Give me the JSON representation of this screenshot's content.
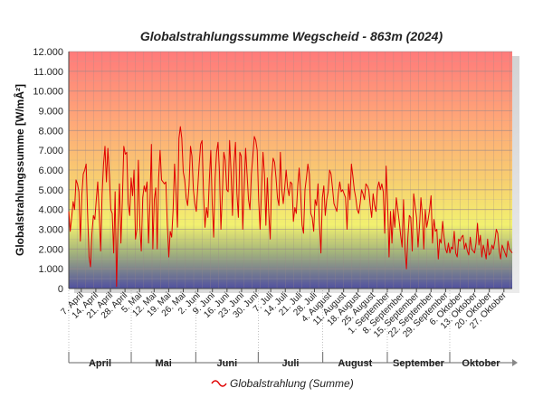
{
  "chart_data": {
    "type": "line",
    "title": "Globalstrahlungssumme Wegscheid - 863m (2024)",
    "ylabel": "Globalstrahlungssumme [W/mÂ²]",
    "ylim": [
      0,
      12000
    ],
    "yticks": [
      "0",
      "1.000",
      "2.000",
      "3.000",
      "4.000",
      "5.000",
      "6.000",
      "7.000",
      "8.000",
      "9.000",
      "10.000",
      "11.000",
      "12.000"
    ],
    "xlim": [
      "2024-04-01",
      "2024-10-31"
    ],
    "xticks": [
      {
        "date": "2024-04-07",
        "label": "7. April"
      },
      {
        "date": "2024-04-14",
        "label": "14. April"
      },
      {
        "date": "2024-04-21",
        "label": "21. April"
      },
      {
        "date": "2024-04-28",
        "label": "28. April"
      },
      {
        "date": "2024-05-05",
        "label": "5. Mai"
      },
      {
        "date": "2024-05-12",
        "label": "12. Mai"
      },
      {
        "date": "2024-05-19",
        "label": "19. Mai"
      },
      {
        "date": "2024-05-26",
        "label": "26. Mai"
      },
      {
        "date": "2024-06-02",
        "label": "2. Juni"
      },
      {
        "date": "2024-06-09",
        "label": "9. Juni"
      },
      {
        "date": "2024-06-16",
        "label": "16. Juni"
      },
      {
        "date": "2024-06-23",
        "label": "23. Juni"
      },
      {
        "date": "2024-06-30",
        "label": "30. Juni"
      },
      {
        "date": "2024-07-07",
        "label": "7. Juli"
      },
      {
        "date": "2024-07-14",
        "label": "14. Juli"
      },
      {
        "date": "2024-07-21",
        "label": "21. Juli"
      },
      {
        "date": "2024-07-28",
        "label": "28. Juli"
      },
      {
        "date": "2024-08-04",
        "label": "4. August"
      },
      {
        "date": "2024-08-11",
        "label": "11. August"
      },
      {
        "date": "2024-08-18",
        "label": "18. August"
      },
      {
        "date": "2024-08-25",
        "label": "25. August"
      },
      {
        "date": "2024-09-01",
        "label": "1. September"
      },
      {
        "date": "2024-09-08",
        "label": "8. September"
      },
      {
        "date": "2024-09-15",
        "label": "15. September"
      },
      {
        "date": "2024-09-22",
        "label": "22. September"
      },
      {
        "date": "2024-09-29",
        "label": "29. September"
      },
      {
        "date": "2024-10-06",
        "label": "6. Oktober"
      },
      {
        "date": "2024-10-13",
        "label": "13. Oktober"
      },
      {
        "date": "2024-10-20",
        "label": "20. Oktober"
      },
      {
        "date": "2024-10-27",
        "label": "27. Oktober"
      }
    ],
    "months": [
      {
        "label": "April",
        "start": "2024-04-01",
        "end": "2024-05-01"
      },
      {
        "label": "Mai",
        "start": "2024-05-01",
        "end": "2024-06-01"
      },
      {
        "label": "Juni",
        "start": "2024-06-01",
        "end": "2024-07-01"
      },
      {
        "label": "Juli",
        "start": "2024-07-01",
        "end": "2024-08-01"
      },
      {
        "label": "August",
        "start": "2024-08-01",
        "end": "2024-09-01"
      },
      {
        "label": "September",
        "start": "2024-09-01",
        "end": "2024-10-01"
      },
      {
        "label": "Oktober",
        "start": "2024-10-01",
        "end": "2024-11-01"
      }
    ],
    "grid": true,
    "legend_position": "bottom-center",
    "colors": {
      "line": "#e00000",
      "bg_top": "#ff7a7a",
      "bg_mid": "#f5f070",
      "bg_bottom": "#5a5aa0"
    },
    "series": [
      {
        "name": "Globalstrahlung (Summe)",
        "start_date": "2024-04-01",
        "values": [
          3900,
          2900,
          3600,
          4400,
          4000,
          5500,
          5300,
          4900,
          2400,
          4700,
          5800,
          6000,
          6300,
          3800,
          1600,
          1100,
          2800,
          3700,
          3500,
          4500,
          5400,
          3800,
          1900,
          4800,
          6300,
          7200,
          5400,
          7100,
          5800,
          4000,
          3800,
          1800,
          4900,
          100,
          3200,
          5300,
          2300,
          4500,
          7200,
          6800,
          6900,
          4300,
          3700,
          5600,
          4700,
          6000,
          2500,
          3000,
          6500,
          3200,
          1900,
          4600,
          5200,
          4900,
          5400,
          2300,
          4300,
          7300,
          2000,
          4500,
          5100,
          2000,
          5600,
          7000,
          5500,
          5400,
          5300,
          5400,
          3200,
          1600,
          2900,
          2600,
          4000,
          6300,
          4800,
          3100,
          7600,
          8200,
          7600,
          5900,
          5500,
          4600,
          4200,
          5200,
          7200,
          6700,
          5000,
          4300,
          3900,
          5100,
          6300,
          7300,
          7500,
          4800,
          3100,
          4100,
          3600,
          5500,
          7000,
          4300,
          2600,
          5600,
          6900,
          7400,
          5900,
          3000,
          4800,
          6900,
          6500,
          5000,
          4900,
          7500,
          5900,
          3700,
          6300,
          7400,
          4800,
          3600,
          6900,
          6700,
          3000,
          5100,
          7100,
          5800,
          4500,
          4000,
          5800,
          6700,
          7700,
          7500,
          7000,
          4500,
          3000,
          5000,
          6900,
          5800,
          3200,
          5600,
          3800,
          2500,
          5600,
          6600,
          6400,
          5600,
          4600,
          4200,
          6900,
          5000,
          4300,
          5100,
          6000,
          5100,
          4700,
          5400,
          5300,
          3400,
          4100,
          3800,
          5200,
          6100,
          4800,
          3200,
          2800,
          5000,
          5600,
          6300,
          5800,
          3800,
          3600,
          2900,
          4500,
          4200,
          5300,
          3300,
          1800,
          4600,
          5200,
          3700,
          4500,
          4900,
          6000,
          5800,
          5100,
          4300,
          4100,
          3900,
          4800,
          5400,
          4900,
          5000,
          4800,
          4600,
          3000,
          5300,
          4500,
          6300,
          5700,
          5000,
          4600,
          4000,
          3800,
          4300,
          5000,
          4800,
          4500,
          5300,
          5200,
          5000,
          4200,
          3600,
          4800,
          4200,
          3900,
          5100,
          5400,
          5000,
          5300,
          4900,
          2800,
          6200,
          4300,
          1600,
          3900,
          2300,
          4000,
          3100,
          4600,
          4000,
          3400,
          2700,
          2100,
          4500,
          2000,
          1000,
          2600,
          3700,
          3600,
          1900,
          4800,
          4200,
          3600,
          2100,
          3100,
          4600,
          3700,
          2000,
          4000,
          3100,
          3500,
          4000,
          4700,
          2300,
          3500,
          2900,
          3000,
          1500,
          2500,
          2300,
          3400,
          2600,
          2000,
          1800,
          2300,
          1800,
          2100,
          2000,
          2900,
          1800,
          1600,
          2500,
          2400,
          2600,
          2700,
          2000,
          2300,
          1900,
          1700,
          2600,
          2000,
          1900,
          1800,
          2300,
          3300,
          2200,
          2700,
          1600,
          2200,
          1900,
          1500,
          2500,
          1700,
          1800,
          2200,
          2000,
          2400,
          3000,
          2800,
          1900,
          1500,
          2200,
          2000,
          1800,
          1600,
          2400,
          2000,
          1900,
          1800
        ]
      }
    ]
  }
}
